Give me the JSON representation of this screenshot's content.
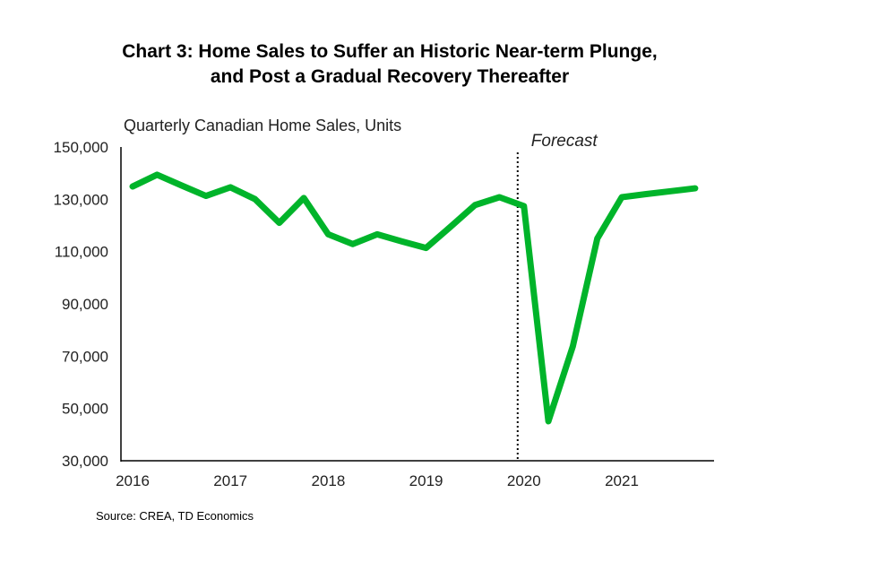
{
  "chart_data": {
    "type": "line",
    "title": "Chart 3: Home Sales to Suffer an Historic Near-term Plunge, and Post a Gradual Recovery Thereafter",
    "title_lines": [
      "Chart 3: Home Sales to Suffer an Historic Near-term Plunge,",
      "and Post a Gradual Recovery Thereafter"
    ],
    "ylabel": "Quarterly Canadian Home Sales, Units",
    "xlabel": "",
    "ylim": [
      30000,
      150000
    ],
    "yticks": [
      30000,
      50000,
      70000,
      90000,
      110000,
      130000,
      150000
    ],
    "ytick_labels": [
      "30,000",
      "50,000",
      "70,000",
      "90,000",
      "110,000",
      "130,000",
      "150,000"
    ],
    "xtick_labels": [
      "2016",
      "2017",
      "2018",
      "2019",
      "2020",
      "2021"
    ],
    "x": [
      "2016Q1",
      "2016Q2",
      "2016Q3",
      "2016Q4",
      "2017Q1",
      "2017Q2",
      "2017Q3",
      "2017Q4",
      "2018Q1",
      "2018Q2",
      "2018Q3",
      "2018Q4",
      "2019Q1",
      "2019Q2",
      "2019Q3",
      "2019Q4",
      "2020Q1",
      "2020Q2",
      "2020Q3",
      "2020Q4",
      "2021Q1",
      "2021Q2",
      "2021Q3",
      "2021Q4"
    ],
    "series": [
      {
        "values": [
          134900,
          139400,
          135300,
          131300,
          134600,
          130100,
          121000,
          130500,
          116600,
          112900,
          116600,
          113900,
          111400,
          119500,
          127800,
          130800,
          127400,
          45100,
          73800,
          115000,
          130800,
          132000,
          133100,
          134200
        ],
        "color": "#00b42a"
      }
    ],
    "annotations": [
      {
        "text": "Forecast",
        "x": "2020Q1",
        "style": "dotted vertical line"
      }
    ],
    "grid": false,
    "legend": "none"
  },
  "source": "Source:  CREA,  TD Economics"
}
